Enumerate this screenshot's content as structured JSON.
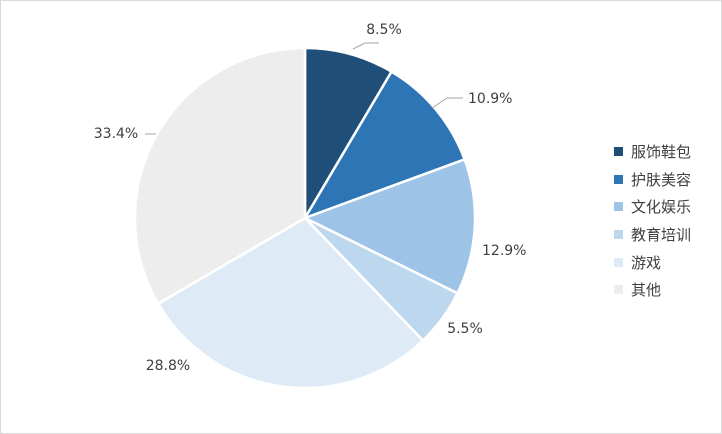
{
  "chart_data": {
    "type": "pie",
    "categories": [
      "服饰鞋包",
      "护肤美容",
      "文化娱乐",
      "教育培训",
      "游戏",
      "其他"
    ],
    "values": [
      8.5,
      10.9,
      12.9,
      5.5,
      28.8,
      33.4
    ],
    "labels": [
      "8.5%",
      "10.9%",
      "12.9%",
      "5.5%",
      "28.8%",
      "33.4%"
    ],
    "colors": [
      "#1f4e79",
      "#2e75b6",
      "#9dc3e6",
      "#bdd7ee",
      "#deebf7",
      "#ededed"
    ],
    "legend_position": "right",
    "start_angle": "12 o'clock",
    "direction": "clockwise",
    "unit": "%"
  }
}
